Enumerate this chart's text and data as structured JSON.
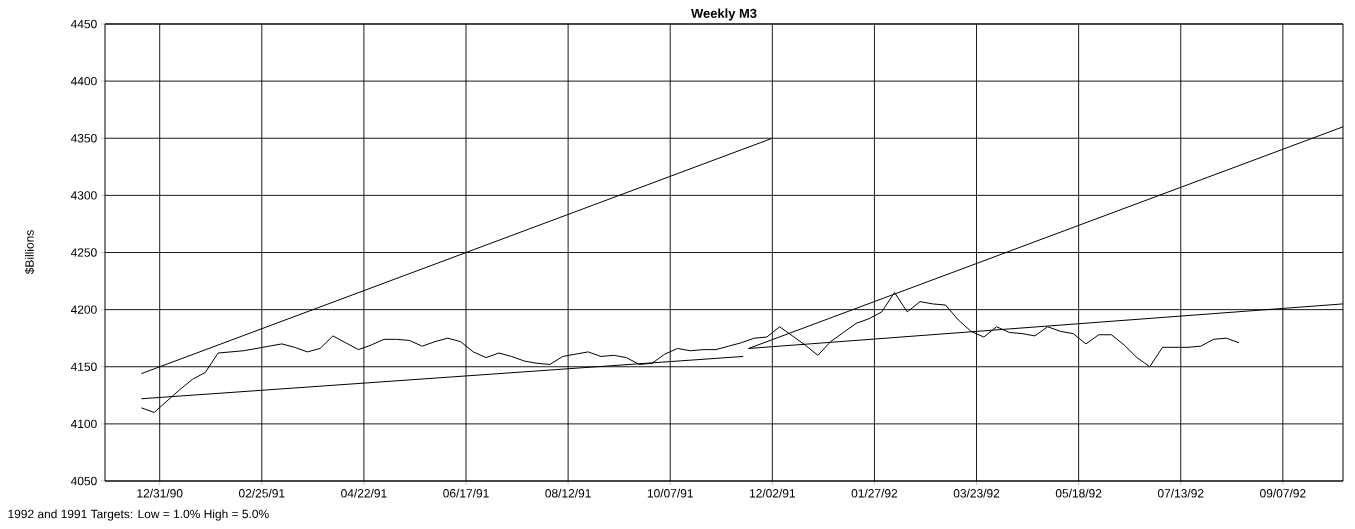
{
  "chart_data": {
    "type": "line",
    "title": "Weekly M3",
    "ylabel": "$Billions",
    "annotations": [
      "1992 and 1991 Targets:  Low = 1.0%  High = 5.0%"
    ],
    "x": [
      "1990-12-21",
      "1990-12-28",
      "1991-01-04",
      "1991-01-11",
      "1991-01-18",
      "1991-01-25",
      "1991-02-01",
      "1991-02-08",
      "1991-02-15",
      "1991-02-22",
      "1991-03-01",
      "1991-03-08",
      "1991-03-15",
      "1991-03-22",
      "1991-03-29",
      "1991-04-05",
      "1991-04-12",
      "1991-04-19",
      "1991-04-26",
      "1991-05-03",
      "1991-05-10",
      "1991-05-17",
      "1991-05-24",
      "1991-05-31",
      "1991-06-07",
      "1991-06-14",
      "1991-06-21",
      "1991-06-28",
      "1991-07-05",
      "1991-07-12",
      "1991-07-19",
      "1991-07-26",
      "1991-08-02",
      "1991-08-09",
      "1991-08-16",
      "1991-08-23",
      "1991-08-30",
      "1991-09-06",
      "1991-09-13",
      "1991-09-20",
      "1991-09-27",
      "1991-10-04",
      "1991-10-11",
      "1991-10-18",
      "1991-10-25",
      "1991-11-01",
      "1991-11-08",
      "1991-11-15",
      "1991-11-22",
      "1991-11-29",
      "1991-12-06",
      "1991-12-13",
      "1991-12-20",
      "1991-12-27",
      "1992-01-03",
      "1992-01-10",
      "1992-01-17",
      "1992-01-24",
      "1992-01-31",
      "1992-02-07",
      "1992-02-14",
      "1992-02-21",
      "1992-02-28",
      "1992-03-06",
      "1992-03-13",
      "1992-03-20",
      "1992-03-27",
      "1992-04-03",
      "1992-04-10",
      "1992-04-17",
      "1992-04-24",
      "1992-05-01",
      "1992-05-08",
      "1992-05-15",
      "1992-05-22",
      "1992-05-29",
      "1992-06-05",
      "1992-06-12",
      "1992-06-19",
      "1992-06-26",
      "1992-07-03",
      "1992-07-10",
      "1992-07-17",
      "1992-07-24",
      "1992-07-31",
      "1992-08-07",
      "1992-08-14"
    ],
    "series": [
      {
        "color": "#000000",
        "values": [
          4114,
          4110,
          4120,
          4130,
          4139,
          4145,
          4162,
          4163,
          4164,
          4166,
          4168,
          4170,
          4167,
          4163,
          4166,
          4177,
          4171,
          4165,
          4169,
          4174,
          4174,
          4173,
          4168,
          4172,
          4175,
          4172,
          4163,
          4158,
          4162,
          4159,
          4155,
          4153,
          4152,
          4159,
          4161,
          4163,
          4159,
          4160,
          4158,
          4152,
          4153,
          4161,
          4166,
          4164,
          4165,
          4165,
          4168,
          4171,
          4175,
          4176,
          4185,
          4177,
          4169,
          4160,
          4172,
          4180,
          4188,
          4192,
          4198,
          4215,
          4198,
          4207,
          4205,
          4204,
          4191,
          4181,
          4176,
          4185,
          4180,
          4179,
          4177,
          4185,
          4181,
          4179,
          4170,
          4178,
          4178,
          4169,
          4158,
          4150,
          4167,
          4167,
          4167,
          4168,
          4174,
          4175,
          4171
        ]
      },
      {
        "color": "#000000",
        "x": [
          "1990-12-21",
          "1991-12-02"
        ],
        "values": [
          4144,
          4350
        ]
      },
      {
        "color": "#000000",
        "x": [
          "1990-12-21",
          "1991-11-16"
        ],
        "values": [
          4122,
          4159
        ]
      },
      {
        "color": "#000000",
        "x": [
          "1991-11-19",
          "1992-10-10"
        ],
        "values": [
          4166,
          4360
        ]
      },
      {
        "color": "#000000",
        "x": [
          "1991-11-19",
          "1992-10-10"
        ],
        "values": [
          4166,
          4205
        ]
      }
    ],
    "xlim": [
      "1990-12-01",
      "1992-10-10"
    ],
    "xticks": [
      {
        "value": "1990-12-31",
        "label": "12/31/90"
      },
      {
        "value": "1991-02-25",
        "label": "02/25/91"
      },
      {
        "value": "1991-04-22",
        "label": "04/22/91"
      },
      {
        "value": "1991-06-17",
        "label": "06/17/91"
      },
      {
        "value": "1991-08-12",
        "label": "08/12/91"
      },
      {
        "value": "1991-10-07",
        "label": "10/07/91"
      },
      {
        "value": "1991-12-02",
        "label": "12/02/91"
      },
      {
        "value": "1992-01-27",
        "label": "01/27/92"
      },
      {
        "value": "1992-03-23",
        "label": "03/23/92"
      },
      {
        "value": "1992-05-18",
        "label": "05/18/92"
      },
      {
        "value": "1992-07-13",
        "label": "07/13/92"
      },
      {
        "value": "1992-09-07",
        "label": "09/07/92"
      }
    ],
    "ylim": [
      4050,
      4450
    ],
    "yticks": [
      4050,
      4100,
      4150,
      4200,
      4250,
      4300,
      4350,
      4400,
      4450
    ],
    "grid": true,
    "marker": "none",
    "line_style": "solid"
  }
}
